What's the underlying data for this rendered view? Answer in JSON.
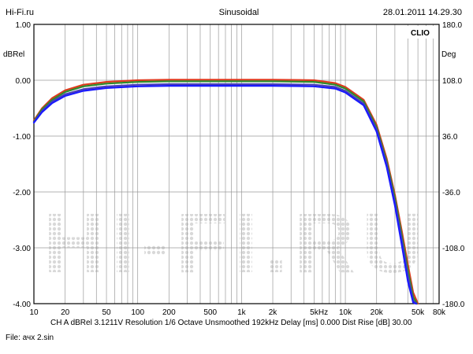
{
  "header": {
    "left": "Hi-Fi.ru",
    "center": "Sinusoidal",
    "right": "28.01.2011 14.29.30"
  },
  "footer": {
    "line1": "CH A   dBRel 3.1211V   Resolution 1/6 Octave   Unsmoothed   192kHz   Delay [ms] 0.000   Dist Rise [dB] 30.00",
    "line2": "File: ачх 2.sin"
  },
  "brand": "CLIO",
  "watermark": "HI-FI.RU",
  "chart_data": {
    "type": "line",
    "title": "Sinusoidal",
    "ylabel": "dBRel",
    "y2label": "Deg",
    "xunit": "Hz",
    "xscale": "log",
    "xlim": [
      10,
      80000
    ],
    "ylim": [
      -4.0,
      1.0
    ],
    "y2lim": [
      -180.0,
      180.0
    ],
    "grid": true,
    "xticks": [
      {
        "v": 10,
        "label": "10"
      },
      {
        "v": 20,
        "label": "20"
      },
      {
        "v": 50,
        "label": "50"
      },
      {
        "v": 100,
        "label": "100"
      },
      {
        "v": 200,
        "label": "200"
      },
      {
        "v": 500,
        "label": "500"
      },
      {
        "v": 1000,
        "label": "1k"
      },
      {
        "v": 2000,
        "label": "2k"
      },
      {
        "v": 5000,
        "label": "5k"
      },
      {
        "v": 10000,
        "label": "10k"
      },
      {
        "v": 20000,
        "label": "20k"
      },
      {
        "v": 50000,
        "label": "50k"
      },
      {
        "v": 80000,
        "label": "80k"
      }
    ],
    "yticks": [
      "1.00",
      "0.00",
      "-1.00",
      "-2.00",
      "-3.00",
      "-4.00"
    ],
    "y2ticks": [
      "180.0",
      "108.0",
      "36.0",
      "-36.0",
      "-108.0",
      "-180.0"
    ],
    "colors": [
      "#e03a1e",
      "#2e8b2e",
      "#4a3fb5",
      "#1a1aff"
    ],
    "series": [
      {
        "x": [
          10,
          12,
          15,
          20,
          30,
          50,
          100,
          200,
          500,
          1000,
          2000,
          5000,
          8000,
          10000,
          15000,
          20000,
          25000,
          30000,
          35000,
          40000,
          45000,
          50000
        ],
        "values": [
          -0.72,
          -0.5,
          -0.32,
          -0.18,
          -0.08,
          -0.03,
          0.0,
          0.01,
          0.01,
          0.01,
          0.01,
          0.0,
          -0.05,
          -0.12,
          -0.35,
          -0.8,
          -1.4,
          -2.05,
          -2.7,
          -3.3,
          -3.8,
          -4.0
        ]
      },
      {
        "x": [
          10,
          12,
          15,
          20,
          30,
          50,
          100,
          200,
          500,
          1000,
          2000,
          5000,
          8000,
          10000,
          15000,
          20000,
          25000,
          30000,
          35000,
          40000,
          45000,
          49000
        ],
        "values": [
          -0.74,
          -0.52,
          -0.35,
          -0.21,
          -0.11,
          -0.06,
          -0.03,
          -0.02,
          -0.02,
          -0.02,
          -0.02,
          -0.03,
          -0.08,
          -0.15,
          -0.38,
          -0.84,
          -1.45,
          -2.1,
          -2.78,
          -3.4,
          -3.88,
          -4.0
        ]
      },
      {
        "x": [
          10,
          12,
          15,
          20,
          30,
          50,
          100,
          200,
          500,
          1000,
          2000,
          5000,
          8000,
          10000,
          15000,
          20000,
          25000,
          30000,
          35000,
          40000,
          45000,
          48500
        ],
        "values": [
          -0.75,
          -0.55,
          -0.38,
          -0.25,
          -0.16,
          -0.11,
          -0.08,
          -0.07,
          -0.07,
          -0.07,
          -0.07,
          -0.08,
          -0.12,
          -0.19,
          -0.42,
          -0.88,
          -1.5,
          -2.18,
          -2.86,
          -3.5,
          -3.95,
          -4.0
        ]
      },
      {
        "x": [
          10,
          12,
          15,
          20,
          30,
          50,
          100,
          200,
          500,
          1000,
          2000,
          5000,
          8000,
          10000,
          15000,
          20000,
          25000,
          30000,
          35000,
          40000,
          45000,
          48000
        ],
        "values": [
          -0.76,
          -0.57,
          -0.41,
          -0.28,
          -0.19,
          -0.14,
          -0.11,
          -0.1,
          -0.1,
          -0.1,
          -0.1,
          -0.11,
          -0.15,
          -0.22,
          -0.45,
          -0.92,
          -1.55,
          -2.24,
          -2.95,
          -3.6,
          -3.98,
          -4.0
        ]
      }
    ]
  }
}
